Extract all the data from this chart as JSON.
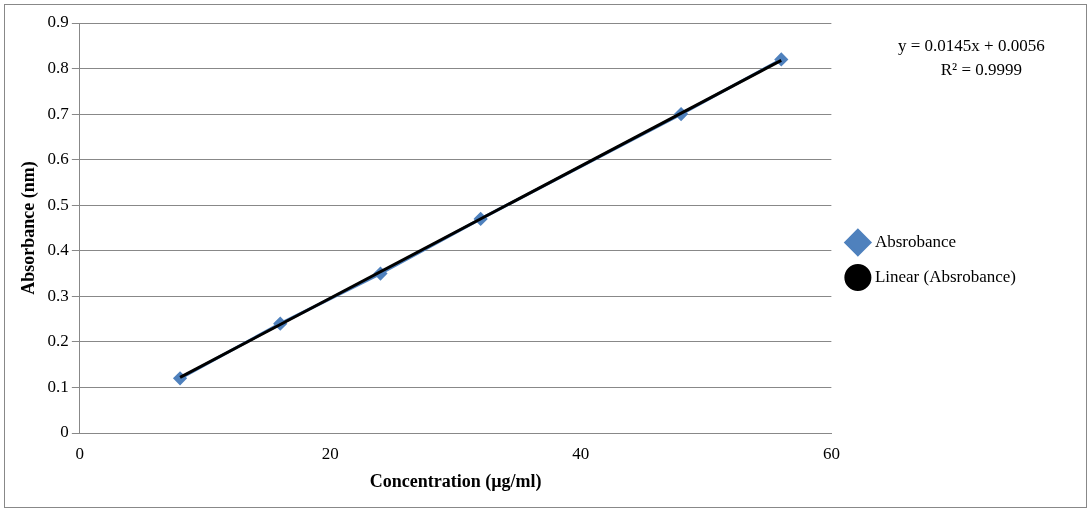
{
  "chart_data": {
    "type": "line",
    "xlabel": "Concentration (µg/ml)",
    "ylabel": "Absorbance (nm)",
    "xlim": [
      0,
      60
    ],
    "xticks": [
      0,
      20,
      40,
      60
    ],
    "ylim": [
      0,
      0.9
    ],
    "yticks": [
      0,
      0.1,
      0.2,
      0.3,
      0.4,
      0.5,
      0.6,
      0.7,
      0.8,
      0.9
    ],
    "grid": "y",
    "legend": "right",
    "line_style": "solid",
    "annotations": [
      "y = 0.0145x + 0.0056",
      "R² = 0.9999"
    ],
    "series": [
      {
        "name": "Absrobance",
        "color": "#4f81bd",
        "marker": "diamond",
        "x": [
          8,
          16,
          24,
          32,
          48,
          56
        ],
        "values": [
          0.12,
          0.24,
          0.35,
          0.47,
          0.7,
          0.82
        ]
      },
      {
        "name": "Linear (Absrobance)",
        "color": "#000000",
        "marker": "none",
        "x": [
          8,
          56
        ],
        "values": [
          0.122,
          0.818
        ]
      }
    ]
  }
}
